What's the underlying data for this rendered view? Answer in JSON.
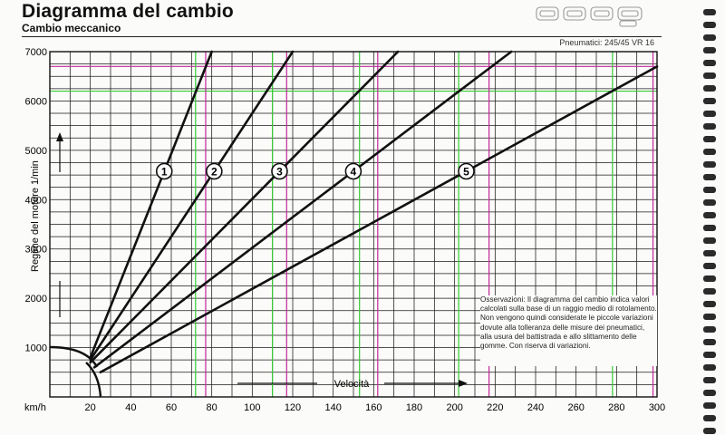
{
  "header": {
    "title": "Diagramma del cambio",
    "subtitle": "Cambio meccanico",
    "tyres": "Pneumatici: 245/45 VR 16",
    "logo": "928 S"
  },
  "notes": {
    "observations": "Osservazioni: Il diagramma del cambio indica valori calcolati sulla base di un raggio medio di rotolamento. Non vengono quindi considerate le piccole variazioni dovute alla tolleranza delle misure dei pneumatici, alla usura del battistrada e allo slittamento delle gomme. Con riserva di variazioni."
  },
  "chart_data": {
    "type": "line",
    "title": "Diagramma del cambio",
    "xlabel": "Velocità",
    "ylabel": "Regime del motore 1/min",
    "x_unit": "km/h",
    "xlim": [
      0,
      300
    ],
    "ylim": [
      0,
      7000
    ],
    "x_ticks": [
      "km/h",
      "20",
      "40",
      "60",
      "80",
      "100",
      "120",
      "140",
      "160",
      "180",
      "200",
      "220",
      "240",
      "260",
      "280",
      "300"
    ],
    "y_ticks": [
      "1000",
      "2000",
      "3000",
      "4000",
      "5000",
      "6000",
      "7000"
    ],
    "grid": true,
    "series": [
      {
        "name": "1",
        "x": [
          20,
          80
        ],
        "y": [
          800,
          7000
        ]
      },
      {
        "name": "2",
        "x": [
          20,
          120
        ],
        "y": [
          750,
          7000
        ]
      },
      {
        "name": "3",
        "x": [
          20,
          172
        ],
        "y": [
          700,
          7000
        ]
      },
      {
        "name": "4",
        "x": [
          22,
          228
        ],
        "y": [
          600,
          7000
        ]
      },
      {
        "name": "5",
        "x": [
          25,
          300
        ],
        "y": [
          500,
          6700
        ]
      }
    ],
    "reference_lines": {
      "rpm": [
        {
          "y": 6700,
          "color": "#c0289a"
        },
        {
          "y": 6200,
          "color": "#33cc33"
        }
      ],
      "speed": [
        {
          "x": 72,
          "color": "#33cc33"
        },
        {
          "x": 77,
          "color": "#c0289a"
        },
        {
          "x": 110,
          "color": "#33cc33"
        },
        {
          "x": 117,
          "color": "#c0289a"
        },
        {
          "x": 153,
          "color": "#33cc33"
        },
        {
          "x": 162,
          "color": "#c0289a"
        },
        {
          "x": 202,
          "color": "#33cc33"
        },
        {
          "x": 217,
          "color": "#c0289a"
        },
        {
          "x": 278,
          "color": "#33cc33"
        },
        {
          "x": 298,
          "color": "#c0289a"
        }
      ]
    }
  }
}
